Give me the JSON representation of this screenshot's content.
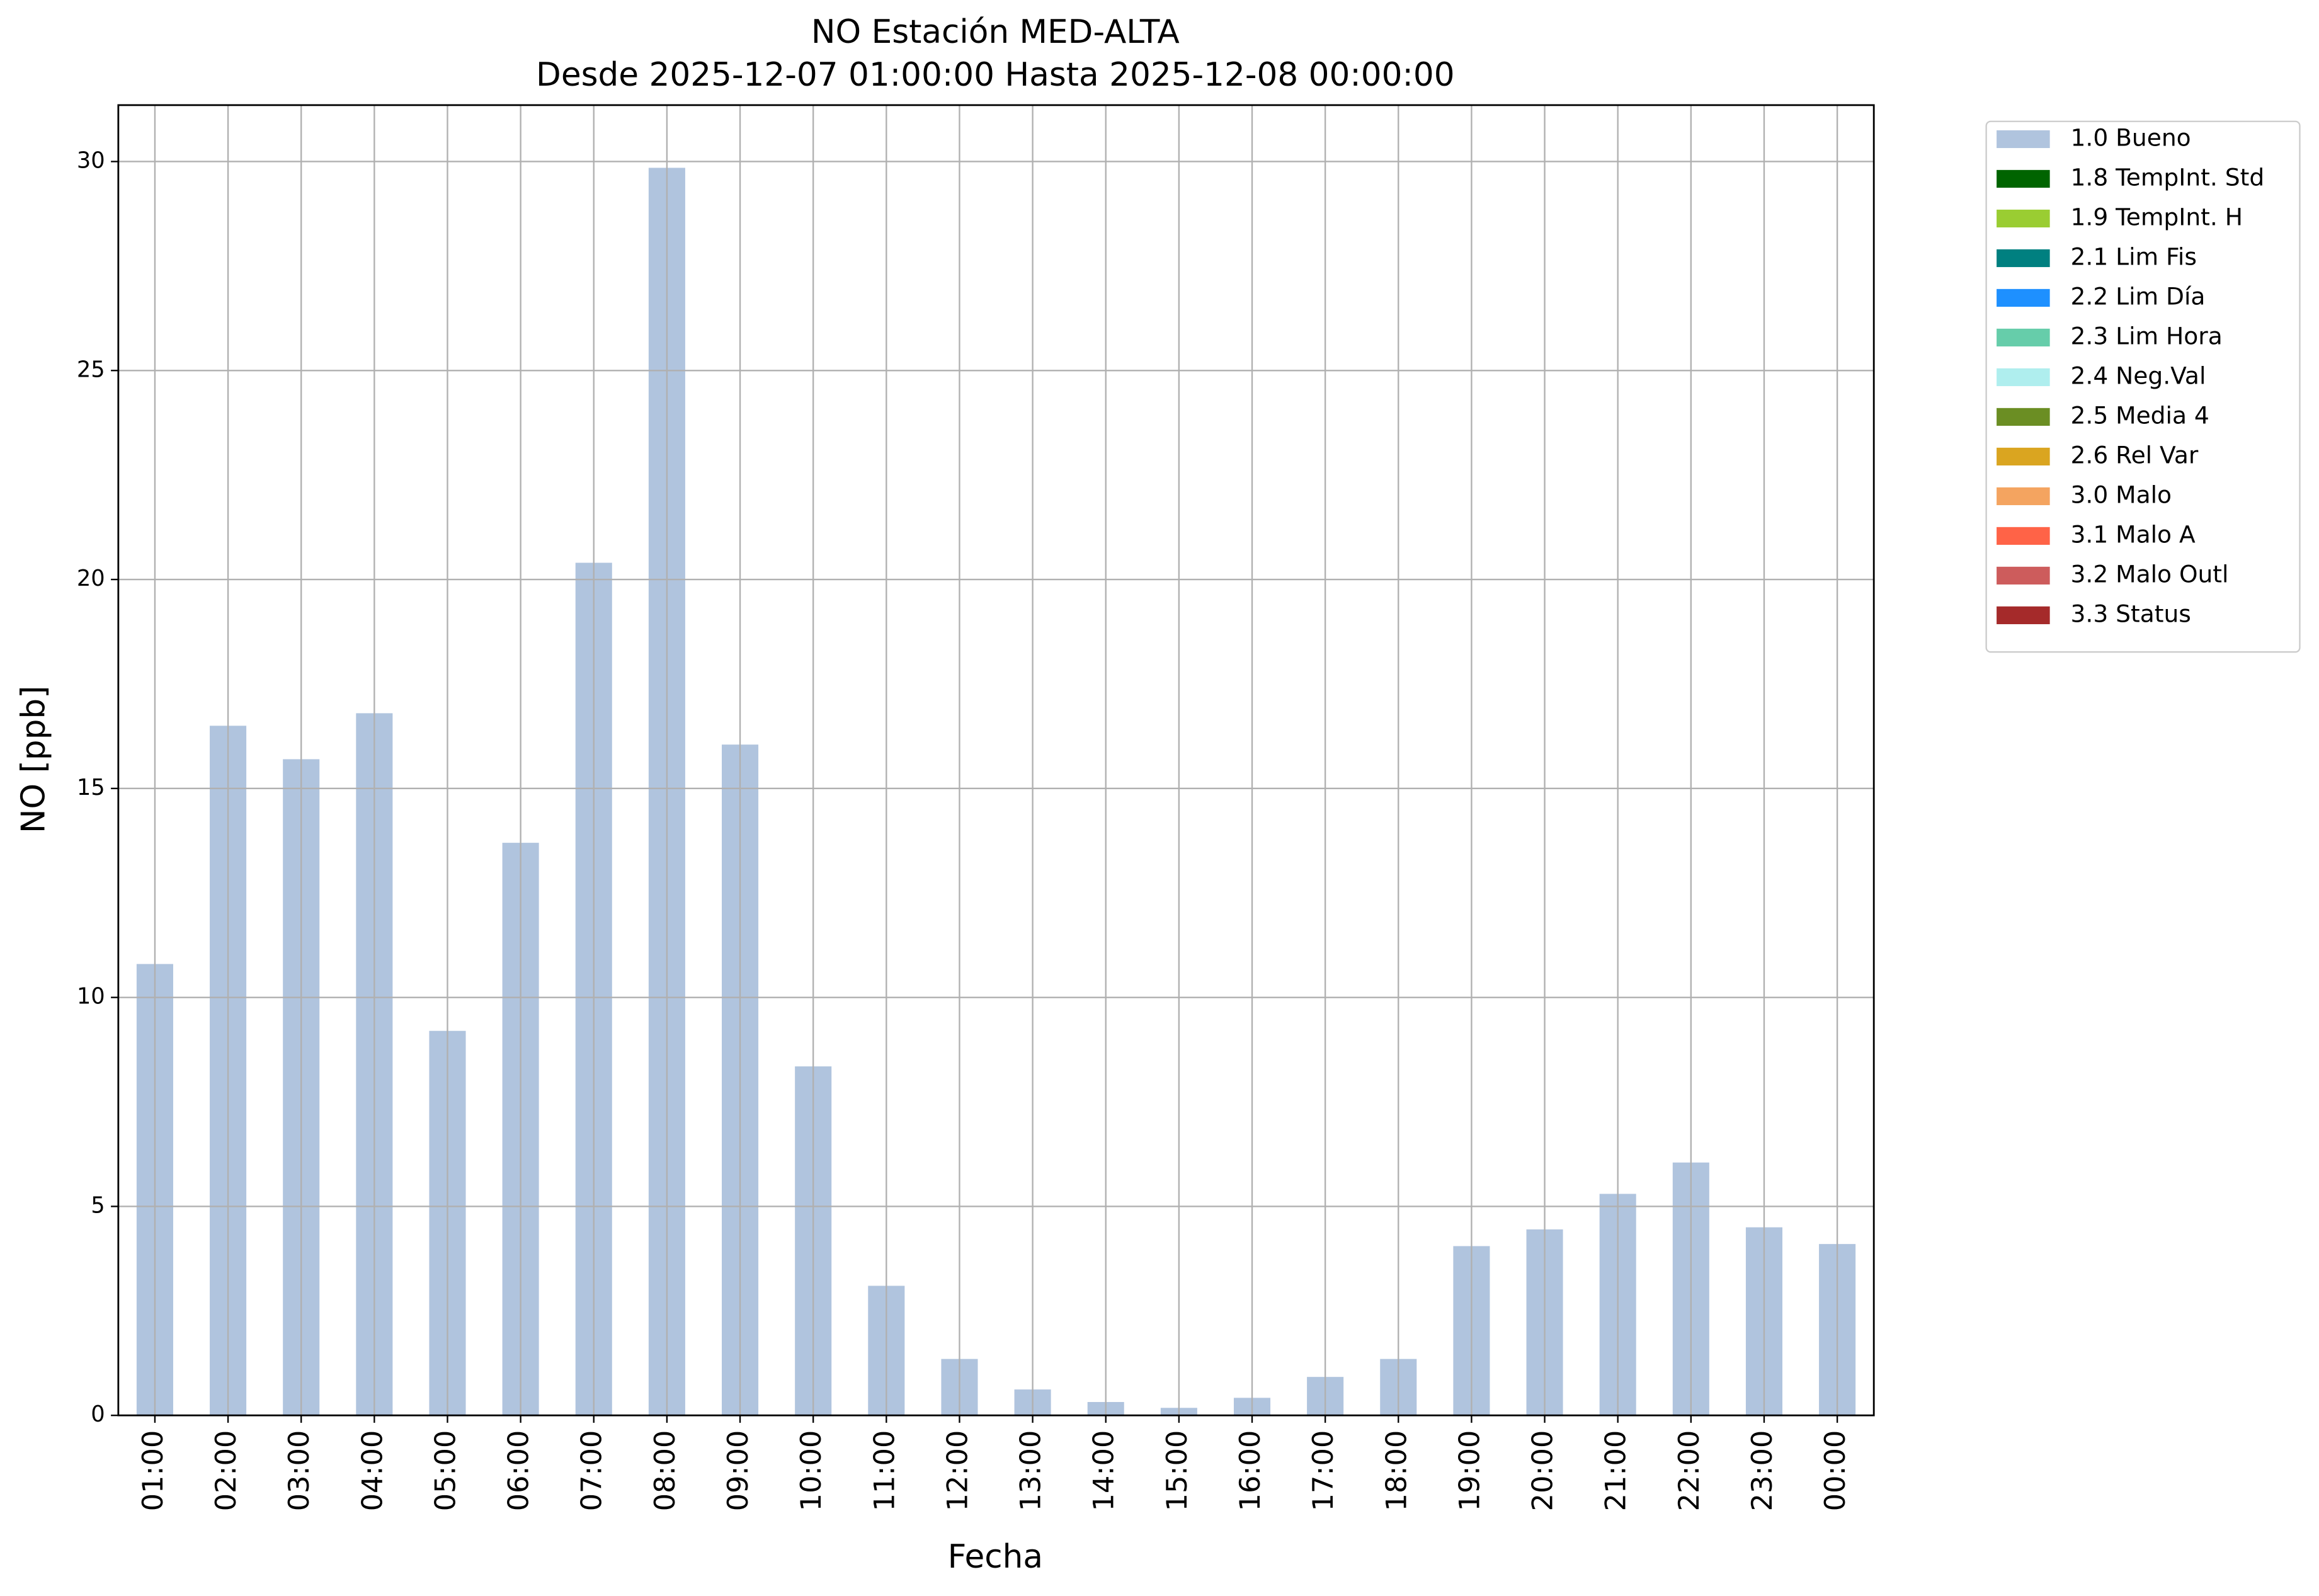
{
  "chart_data": {
    "type": "bar",
    "title": "NO Estación MED-ALTA",
    "subtitle": "Desde 2025-12-07 01:00:00 Hasta 2025-12-08 00:00:00",
    "x_label": "Fecha",
    "y_label": "NO [ppb]",
    "categories": [
      "01:00",
      "02:00",
      "03:00",
      "04:00",
      "05:00",
      "06:00",
      "07:00",
      "08:00",
      "09:00",
      "10:00",
      "11:00",
      "12:00",
      "13:00",
      "14:00",
      "15:00",
      "16:00",
      "17:00",
      "18:00",
      "19:00",
      "20:00",
      "21:00",
      "22:00",
      "23:00",
      "00:00"
    ],
    "series": [
      {
        "name": "1.0 Bueno",
        "color": "#b0c4de",
        "values": [
          10.8,
          16.5,
          15.7,
          16.8,
          9.2,
          13.7,
          20.4,
          29.85,
          16.05,
          8.35,
          3.1,
          1.35,
          0.62,
          0.32,
          0.18,
          0.42,
          0.92,
          1.35,
          4.05,
          4.45,
          5.3,
          6.05,
          4.5,
          4.1
        ]
      },
      {
        "name": "1.8 TempInt. Std",
        "color": "#006400",
        "values": [
          null,
          null,
          null,
          null,
          null,
          null,
          null,
          null,
          null,
          null,
          null,
          null,
          null,
          null,
          null,
          null,
          null,
          null,
          null,
          null,
          null,
          null,
          null,
          null
        ]
      },
      {
        "name": "1.9 TempInt. H",
        "color": "#9acd32",
        "values": [
          null,
          null,
          null,
          null,
          null,
          null,
          null,
          null,
          null,
          null,
          null,
          null,
          null,
          null,
          null,
          null,
          null,
          null,
          null,
          null,
          null,
          null,
          null,
          null
        ]
      },
      {
        "name": "2.1 Lim Fis",
        "color": "#008080",
        "values": [
          null,
          null,
          null,
          null,
          null,
          null,
          null,
          null,
          null,
          null,
          null,
          null,
          null,
          null,
          null,
          null,
          null,
          null,
          null,
          null,
          null,
          null,
          null,
          null
        ]
      },
      {
        "name": "2.2 Lim Día",
        "color": "#1e90ff",
        "values": [
          null,
          null,
          null,
          null,
          null,
          null,
          null,
          null,
          null,
          null,
          null,
          null,
          null,
          null,
          null,
          null,
          null,
          null,
          null,
          null,
          null,
          null,
          null,
          null
        ]
      },
      {
        "name": "2.3 Lim Hora",
        "color": "#66cdaa",
        "values": [
          null,
          null,
          null,
          null,
          null,
          null,
          null,
          null,
          null,
          null,
          null,
          null,
          null,
          null,
          null,
          null,
          null,
          null,
          null,
          null,
          null,
          null,
          null,
          null
        ]
      },
      {
        "name": "2.4 Neg.Val",
        "color": "#afeeee",
        "values": [
          null,
          null,
          null,
          null,
          null,
          null,
          null,
          null,
          null,
          null,
          null,
          null,
          null,
          null,
          null,
          null,
          null,
          null,
          null,
          null,
          null,
          null,
          null,
          null
        ]
      },
      {
        "name": "2.5 Media 4",
        "color": "#6b8e23",
        "values": [
          null,
          null,
          null,
          null,
          null,
          null,
          null,
          null,
          null,
          null,
          null,
          null,
          null,
          null,
          null,
          null,
          null,
          null,
          null,
          null,
          null,
          null,
          null,
          null
        ]
      },
      {
        "name": "2.6 Rel Var",
        "color": "#daa520",
        "values": [
          null,
          null,
          null,
          null,
          null,
          null,
          null,
          null,
          null,
          null,
          null,
          null,
          null,
          null,
          null,
          null,
          null,
          null,
          null,
          null,
          null,
          null,
          null,
          null
        ]
      },
      {
        "name": "3.0 Malo",
        "color": "#f4a460",
        "values": [
          null,
          null,
          null,
          null,
          null,
          null,
          null,
          null,
          null,
          null,
          null,
          null,
          null,
          null,
          null,
          null,
          null,
          null,
          null,
          null,
          null,
          null,
          null,
          null
        ]
      },
      {
        "name": "3.1 Malo A",
        "color": "#ff6347",
        "values": [
          null,
          null,
          null,
          null,
          null,
          null,
          null,
          null,
          null,
          null,
          null,
          null,
          null,
          null,
          null,
          null,
          null,
          null,
          null,
          null,
          null,
          null,
          null,
          null
        ]
      },
      {
        "name": "3.2 Malo Outl",
        "color": "#cd5c5c",
        "values": [
          null,
          null,
          null,
          null,
          null,
          null,
          null,
          null,
          null,
          null,
          null,
          null,
          null,
          null,
          null,
          null,
          null,
          null,
          null,
          null,
          null,
          null,
          null,
          null
        ]
      },
      {
        "name": "3.3 Status",
        "color": "#a52a2a",
        "values": [
          null,
          null,
          null,
          null,
          null,
          null,
          null,
          null,
          null,
          null,
          null,
          null,
          null,
          null,
          null,
          null,
          null,
          null,
          null,
          null,
          null,
          null,
          null,
          null
        ]
      }
    ],
    "ylim": [
      0,
      31.35
    ],
    "yticks": [
      0,
      5,
      10,
      15,
      20,
      25,
      30
    ],
    "grid": true,
    "stacked": true,
    "legend": "outside-upper-right"
  }
}
